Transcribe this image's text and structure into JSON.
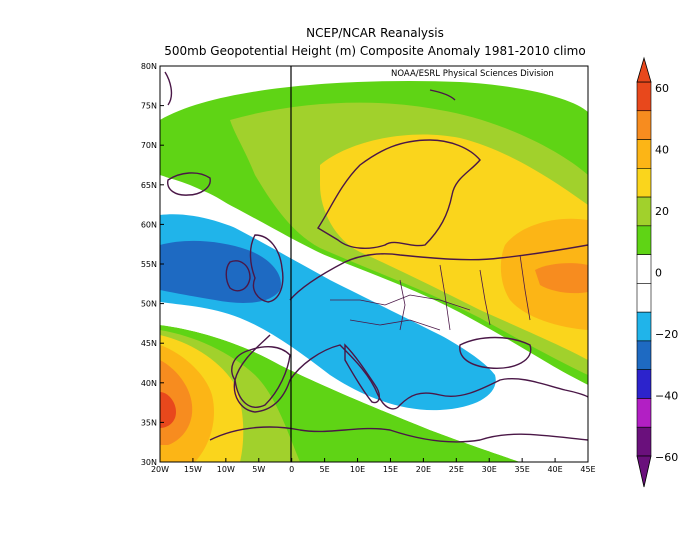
{
  "header": {
    "title": "NCEP/NCAR Reanalysis",
    "subtitle": "500mb Geopotential Height (m) Composite Anomaly 1981-2010 climo"
  },
  "credit": "NOAA/ESRL Physical Sciences Division",
  "axes": {
    "lon_labels": [
      "20W",
      "15W",
      "10W",
      "5W",
      "0",
      "5E",
      "10E",
      "15E",
      "20E",
      "25E",
      "30E",
      "35E",
      "40E",
      "45E"
    ],
    "lat_labels": [
      "80N",
      "75N",
      "70N",
      "65N",
      "60N",
      "55N",
      "50N",
      "45N",
      "40N",
      "35N",
      "30N"
    ]
  },
  "colorbar": {
    "labels": [
      "60",
      "40",
      "20",
      "0",
      "−20",
      "−40",
      "−60"
    ],
    "bins": [
      {
        "range": "50 to 60",
        "color": "#e8481c"
      },
      {
        "range": "40 to 50",
        "color": "#f78c1f"
      },
      {
        "range": "30 to 40",
        "color": "#fcb516"
      },
      {
        "range": "20 to 30",
        "color": "#fad51c"
      },
      {
        "range": "10 to 20",
        "color": "#a1d12c"
      },
      {
        "range": "0 to 10",
        "color": "#5fd415"
      },
      {
        "range": "-10 to 0",
        "color": "#ffffff"
      },
      {
        "range": "-20 to -10",
        "color": "#ffffff"
      },
      {
        "range": "-30 to -20",
        "color": "#20b4ea"
      },
      {
        "range": "-40 to -30",
        "color": "#1e6ac2"
      },
      {
        "range": "-50 to -40",
        "color": "#2c23cc"
      },
      {
        "range": "-60 to -50",
        "color": "#b21fc4"
      },
      {
        "range": "-70 to -60",
        "color": "#6a107c"
      }
    ]
  }
}
